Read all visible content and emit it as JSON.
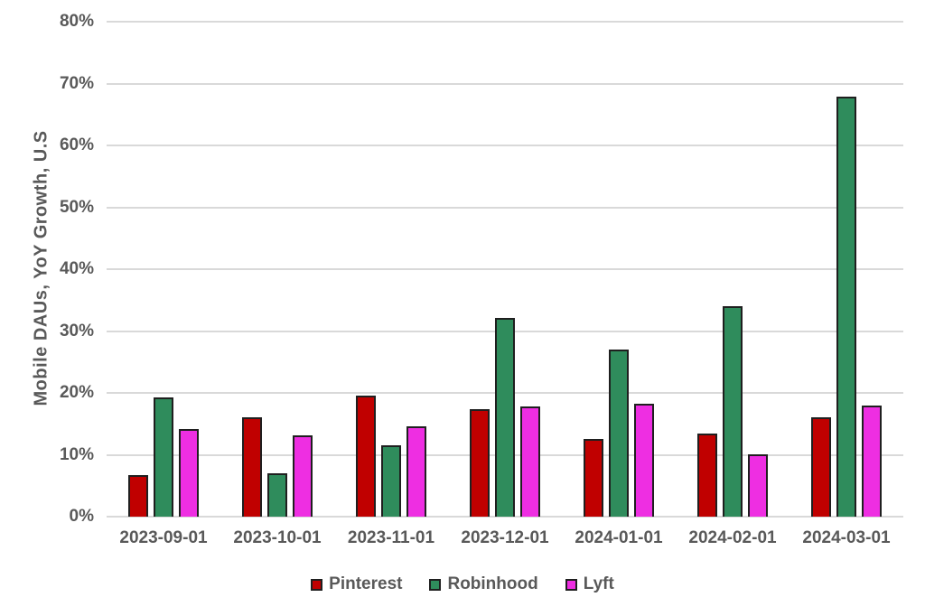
{
  "chart_data": {
    "type": "bar",
    "title": "",
    "xlabel": "",
    "ylabel": "Mobile DAUs, YoY Growth, U.S",
    "ylim": [
      0,
      80
    ],
    "ytick_step": 10,
    "ytick_suffix": "%",
    "grid": true,
    "legend_position": "bottom",
    "categories": [
      "2023-09-01",
      "2023-10-01",
      "2023-11-01",
      "2023-12-01",
      "2024-01-01",
      "2024-02-01",
      "2024-03-01"
    ],
    "series": [
      {
        "name": "Pinterest",
        "color": "#C00000",
        "values": [
          6.7,
          16.1,
          19.5,
          17.3,
          12.6,
          13.4,
          16.1
        ]
      },
      {
        "name": "Robinhood",
        "color": "#2F8C5C",
        "values": [
          19.2,
          7.0,
          11.5,
          32.1,
          27.0,
          34.0,
          67.9
        ]
      },
      {
        "name": "Lyft",
        "color": "#EE2EE2",
        "values": [
          14.2,
          13.2,
          14.6,
          17.8,
          18.2,
          10.1,
          18.0
        ]
      }
    ],
    "colors": {
      "bar_border": "#1F1F1F",
      "grid": "#D9D9D9",
      "text": "#595959",
      "background": "#FFFFFF"
    }
  }
}
